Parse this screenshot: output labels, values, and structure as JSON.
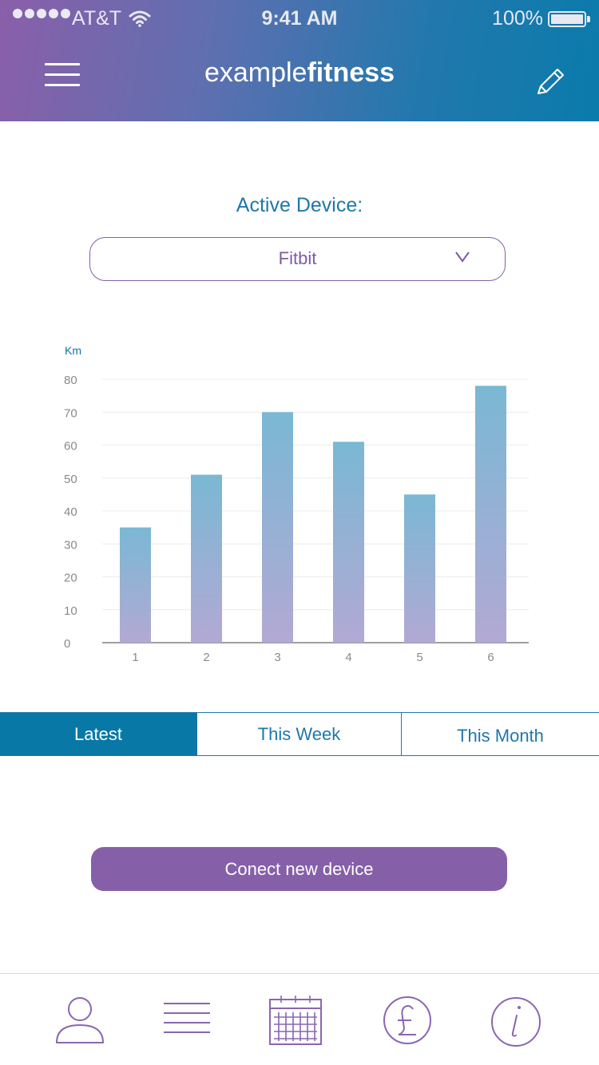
{
  "status_bar": {
    "carrier": "AT&T",
    "time": "9:41 AM",
    "battery": "100%"
  },
  "header": {
    "brand_light": "example",
    "brand_bold": "fitness"
  },
  "device": {
    "label": "Active Device:",
    "selected": "Fitbit"
  },
  "tabs": [
    {
      "label": "Latest",
      "active": true
    },
    {
      "label": "This Week",
      "active": false
    },
    {
      "label": "This Month",
      "active": false
    }
  ],
  "connect_button": "Conect new device",
  "colors": {
    "accent_blue": "#0878a7",
    "accent_purple": "#865fa9",
    "bar_top": "#7ab8d4",
    "bar_bottom": "#b2a9d4"
  },
  "bottom_nav": [
    {
      "icon": "user-icon"
    },
    {
      "icon": "list-icon"
    },
    {
      "icon": "calendar-icon"
    },
    {
      "icon": "pound-icon"
    },
    {
      "icon": "info-icon"
    }
  ],
  "chart_data": {
    "type": "bar",
    "ylabel": "Km",
    "xlabel": "",
    "categories": [
      "1",
      "2",
      "3",
      "4",
      "5",
      "6"
    ],
    "values": [
      35,
      51,
      70,
      61,
      45,
      78
    ],
    "ylim": [
      0,
      80
    ],
    "yticks": [
      0,
      10,
      20,
      30,
      40,
      50,
      60,
      70,
      80
    ],
    "grid": true,
    "legend": "none"
  }
}
